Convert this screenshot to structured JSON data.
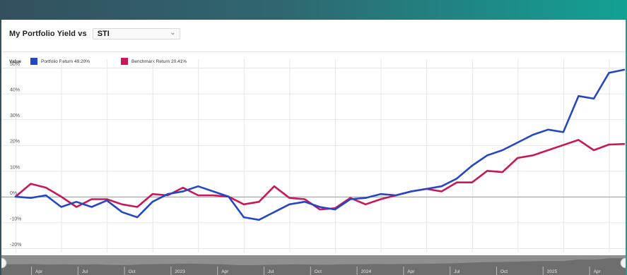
{
  "header": {
    "title": "My Portfolio Yield vs",
    "benchmark_select": "STI"
  },
  "legend": {
    "title": "Value"
  },
  "colors": {
    "portfolio": "#2547c4",
    "benchmark": "#c8175a",
    "grid": "#e6e6e6"
  },
  "icons": {
    "dropdown": "chevron-down-icon"
  },
  "chart_data": {
    "type": "line",
    "x": [
      "2022-01",
      "2022-02",
      "2022-03",
      "2022-04",
      "2022-05",
      "2022-06",
      "2022-07",
      "2022-08",
      "2022-09",
      "2022-10",
      "2022-11",
      "2022-12",
      "2023-01",
      "2023-02",
      "2023-03",
      "2023-04",
      "2023-05",
      "2023-06",
      "2023-07",
      "2023-08",
      "2023-09",
      "2023-10",
      "2023-11",
      "2023-12",
      "2024-01",
      "2024-02",
      "2024-03",
      "2024-04",
      "2024-05",
      "2024-06",
      "2024-07",
      "2024-08",
      "2024-09",
      "2024-10",
      "2024-11",
      "2024-12",
      "2025-01",
      "2025-02",
      "2025-03",
      "2025-04",
      "2025-05"
    ],
    "series": [
      {
        "name": "Portfolio Return 49.20%",
        "values": [
          0,
          -0.5,
          0.5,
          -4,
          -2,
          -4,
          -1.5,
          -6,
          -8,
          -2,
          1,
          2,
          4,
          2,
          0,
          -8,
          -9,
          -6,
          -3,
          -2,
          -4,
          -5,
          -1,
          -0.5,
          1,
          0.5,
          2,
          3,
          4,
          7,
          12,
          16,
          18,
          21,
          24,
          26,
          25,
          39,
          38,
          48,
          49.2
        ]
      },
      {
        "name": "Benchmark Return 20.41%",
        "values": [
          0,
          5,
          3.5,
          0,
          -4,
          -1,
          -1,
          -3,
          -4,
          1,
          0.5,
          3.5,
          0.5,
          0.5,
          0,
          -3,
          -2,
          4,
          -0.5,
          -1,
          -5,
          -4.5,
          -0.5,
          -3,
          -1,
          0.5,
          2,
          3,
          2,
          5.5,
          5.5,
          10,
          9.5,
          15,
          16,
          18,
          20,
          22,
          18,
          20.2,
          20.41
        ]
      }
    ],
    "ylim": [
      -20,
      50
    ],
    "yticks": [
      "50%",
      "40%",
      "30%",
      "20%",
      "10%",
      "0%",
      "-10%",
      "-20%"
    ],
    "navigator_labels": [
      "Apr",
      "Jul",
      "Oct",
      "2023",
      "Apr",
      "Jul",
      "Oct",
      "2024",
      "Apr",
      "Jul",
      "Oct",
      "2025",
      "Apr"
    ],
    "grid": true,
    "legend_position": "top-left"
  }
}
